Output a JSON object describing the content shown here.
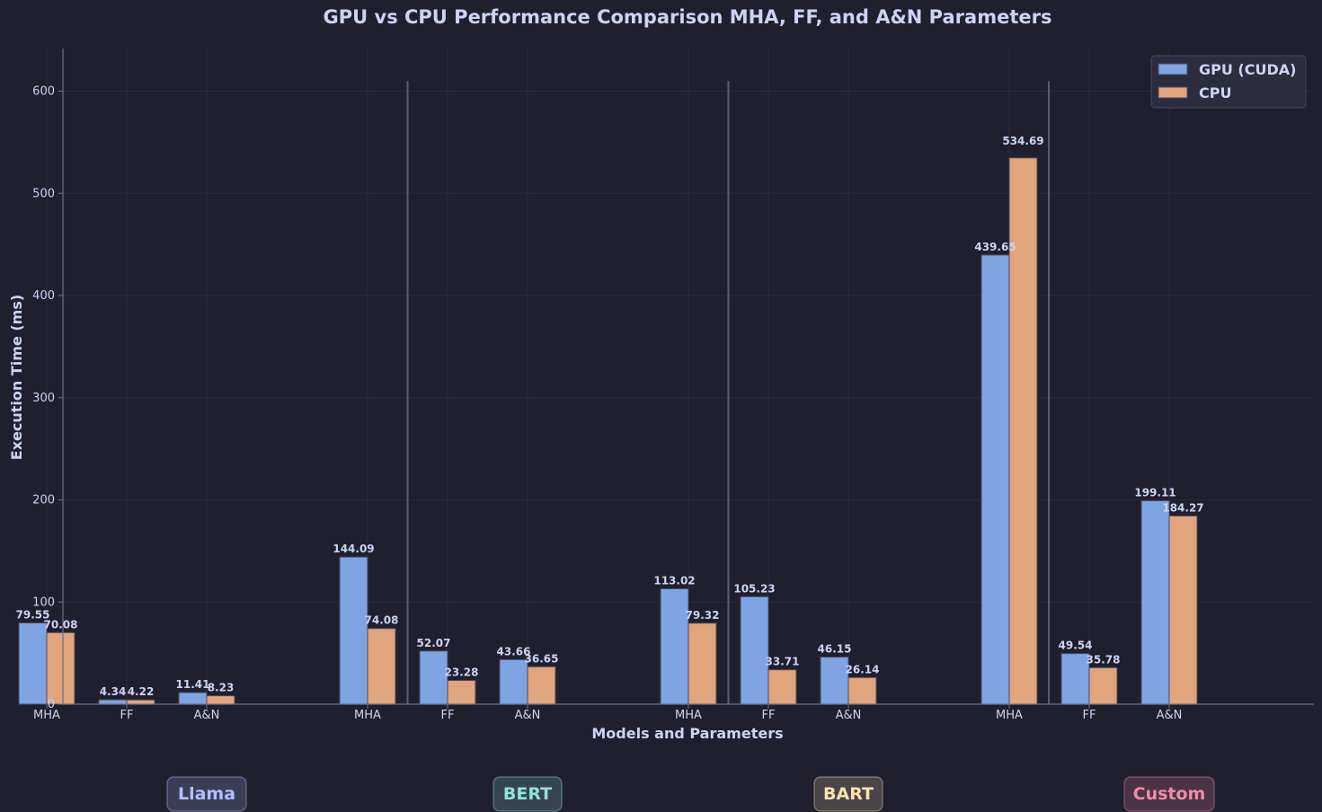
{
  "chart_data": {
    "type": "bar",
    "title": "GPU vs CPU Performance Comparison MHA, FF, and A&N Parameters",
    "xlabel": "Models and Parameters",
    "ylabel": "Execution Time (ms)",
    "ylim": [
      0,
      640
    ],
    "yticks": [
      0,
      100,
      200,
      300,
      400,
      500,
      600
    ],
    "legend_position": "top-right",
    "grid": true,
    "series": [
      {
        "name": "GPU (CUDA)",
        "color": "#7ea4e4"
      },
      {
        "name": "CPU",
        "color": "#e2a47c"
      }
    ],
    "groups": [
      {
        "name": "Llama",
        "color": "#b4befe",
        "categories": [
          "MHA",
          "FF",
          "A&N"
        ],
        "gpu": [
          79.55,
          4.34,
          11.41
        ],
        "cpu": [
          70.08,
          4.22,
          8.23
        ]
      },
      {
        "name": "BERT",
        "color": "#94e2d5",
        "categories": [
          "MHA",
          "FF",
          "A&N"
        ],
        "gpu": [
          144.09,
          52.07,
          43.66
        ],
        "cpu": [
          74.08,
          23.28,
          36.65
        ]
      },
      {
        "name": "BART",
        "color": "#f9e2af",
        "categories": [
          "MHA",
          "FF",
          "A&N"
        ],
        "gpu": [
          113.02,
          105.23,
          46.15
        ],
        "cpu": [
          79.32,
          33.71,
          26.14
        ]
      },
      {
        "name": "Custom",
        "color": "#f38ba8",
        "categories": [
          "MHA",
          "FF",
          "A&N"
        ],
        "gpu": [
          439.65,
          49.54,
          199.11
        ],
        "cpu": [
          534.69,
          35.78,
          184.27
        ]
      }
    ]
  }
}
